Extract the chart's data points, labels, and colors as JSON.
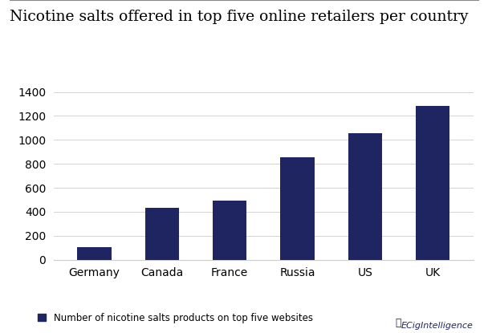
{
  "title": "Nicotine salts offered in top five online retailers per country",
  "categories": [
    "Germany",
    "Canada",
    "France",
    "Russia",
    "US",
    "UK"
  ],
  "values": [
    108,
    435,
    495,
    855,
    1058,
    1285
  ],
  "bar_color": "#1e2560",
  "legend_label": "Number of nicotine salts products on top five websites",
  "ylim": [
    0,
    1500
  ],
  "yticks": [
    0,
    200,
    400,
    600,
    800,
    1000,
    1200,
    1400
  ],
  "background_color": "#ffffff",
  "title_fontsize": 13.5,
  "axis_fontsize": 10,
  "legend_fontsize": 8.5,
  "watermark": "ECigIntelligence",
  "watermark_color": "#1e2560"
}
